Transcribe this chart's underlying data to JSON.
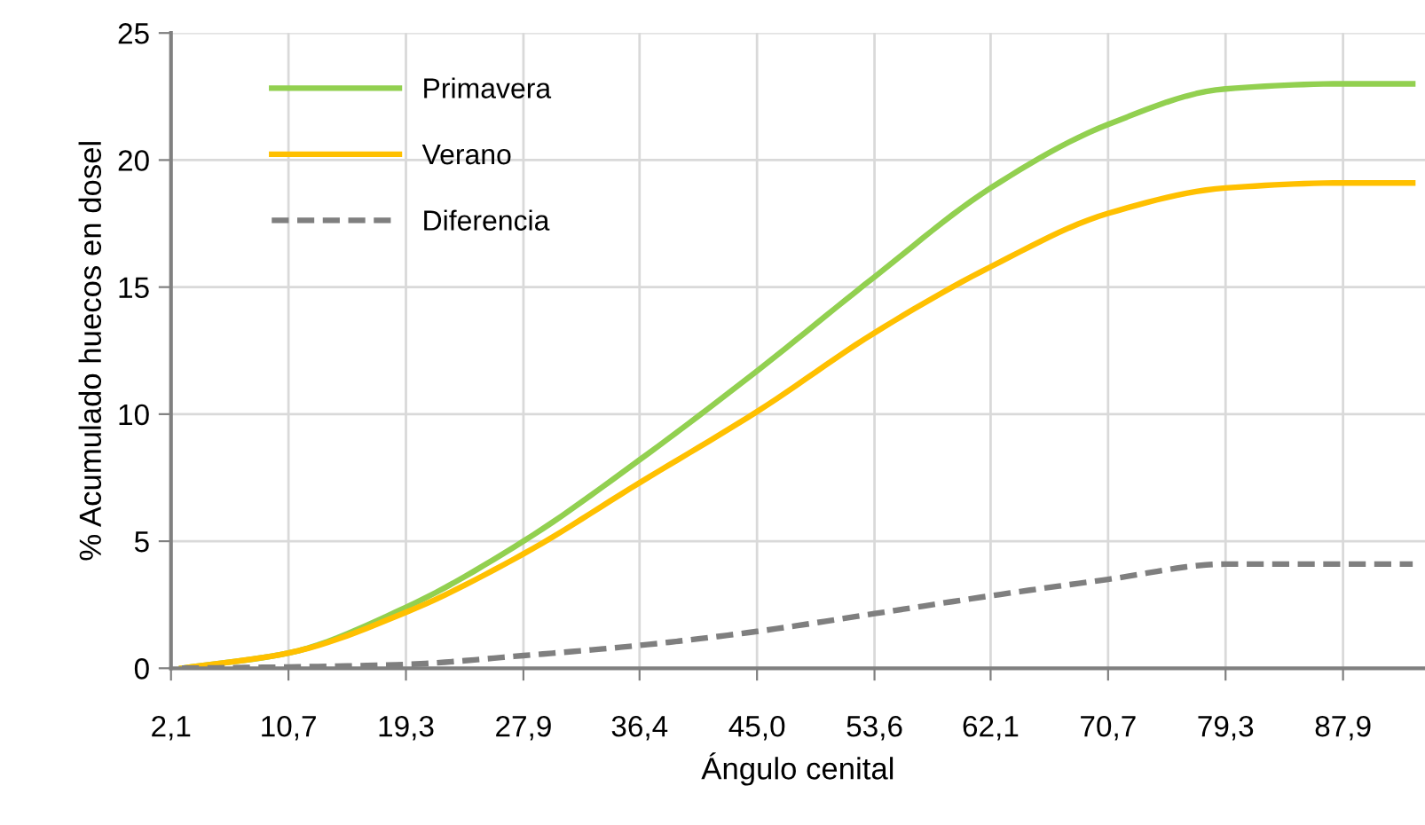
{
  "chart_data": {
    "type": "line",
    "xlabel": "Ángulo cenital",
    "ylabel": "% Acumulado huecos en dosel",
    "series": [
      {
        "name": "Primavera",
        "color": "#92d050",
        "line_style": "solid",
        "x": [
          2.9,
          10.7,
          19.3,
          27.9,
          36.4,
          45.0,
          53.6,
          62.1,
          70.7,
          79.3,
          87.9,
          93.0
        ],
        "values": [
          0,
          0.6,
          2.4,
          5.0,
          8.2,
          11.7,
          15.4,
          18.9,
          21.4,
          22.8,
          23.0,
          23.0
        ]
      },
      {
        "name": "Verano",
        "color": "#ffc000",
        "line_style": "solid",
        "x": [
          2.9,
          10.7,
          19.3,
          27.9,
          36.4,
          45.0,
          53.6,
          62.1,
          70.7,
          79.3,
          87.9,
          93.0
        ],
        "values": [
          0,
          0.6,
          2.2,
          4.5,
          7.3,
          10.1,
          13.2,
          15.8,
          17.9,
          18.9,
          19.1,
          19.1
        ]
      },
      {
        "name": "Diferencia",
        "color": "#7f7f7f",
        "line_style": "dashed",
        "x": [
          2.9,
          10.7,
          19.3,
          27.9,
          36.4,
          45.0,
          53.6,
          62.1,
          70.7,
          79.3,
          87.9,
          93.0
        ],
        "values": [
          0,
          0.05,
          0.15,
          0.5,
          0.9,
          1.45,
          2.15,
          2.85,
          3.5,
          4.1,
          4.1,
          4.1
        ]
      }
    ],
    "xlim": [
      2.1,
      93.9
    ],
    "xticks": [
      {
        "value": 2.1,
        "label": "2,1"
      },
      {
        "value": 10.7,
        "label": "10,7"
      },
      {
        "value": 19.3,
        "label": "19,3"
      },
      {
        "value": 27.9,
        "label": "27,9"
      },
      {
        "value": 36.4,
        "label": "36,4"
      },
      {
        "value": 45.0,
        "label": "45,0"
      },
      {
        "value": 53.6,
        "label": "53,6"
      },
      {
        "value": 62.1,
        "label": "62,1"
      },
      {
        "value": 70.7,
        "label": "70,7"
      },
      {
        "value": 79.3,
        "label": "79,3"
      },
      {
        "value": 87.9,
        "label": "87,9"
      }
    ],
    "ylim": [
      0,
      25
    ],
    "yticks": [
      0,
      5,
      10,
      15,
      20,
      25
    ],
    "grid": true,
    "legend": "top left",
    "marker": "none"
  }
}
